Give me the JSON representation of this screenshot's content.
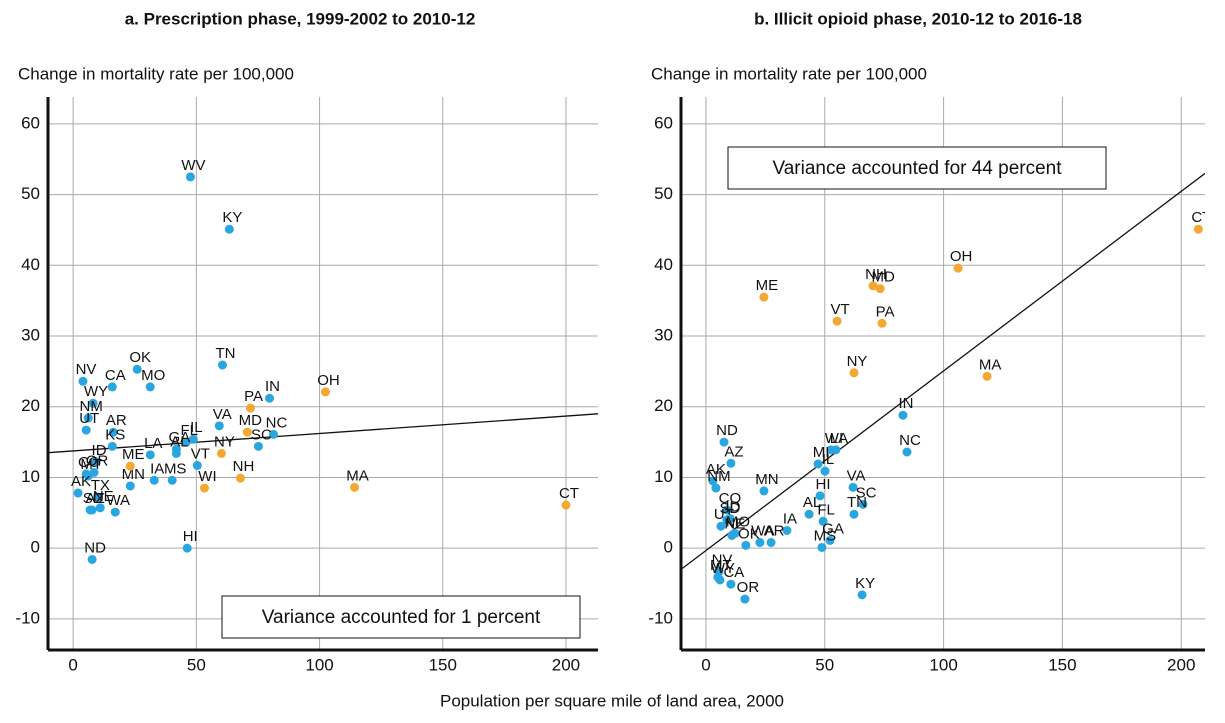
{
  "chart_data": [
    {
      "type": "scatter",
      "title": "a. Prescription phase, 1999-2002 to 2010-12",
      "ylabel": "Change in  mortality rate per 100,000",
      "annotation": "Variance accounted for 1 percent",
      "xlim": [
        -10.2,
        213
      ],
      "ylim": [
        -14.4,
        63.8
      ],
      "xticks": [
        0,
        50,
        100,
        150,
        200
      ],
      "yticks": [
        -10,
        0,
        10,
        20,
        30,
        40,
        50,
        60
      ],
      "grid": true,
      "trend": {
        "x": [
          -10.2,
          213
        ],
        "y": [
          13.5,
          19.0
        ]
      },
      "series": [
        {
          "color": "#29a6df",
          "labels": [
            "WV",
            "KY",
            "TN",
            "OK",
            "NV",
            "CA",
            "MO",
            "WY",
            "IN",
            "NM",
            "UT",
            "VA",
            "NC",
            "IL",
            "FL",
            "AR",
            "KS",
            "GA",
            "SC",
            "AL",
            "LA",
            "CO",
            "ID",
            "OR",
            "MT",
            "VT",
            "IA",
            "MN",
            "TX",
            "AK",
            "AZ",
            "NE",
            "WA",
            "MS",
            "SD",
            "HI",
            "ND"
          ],
          "x": [
            47.6,
            63.4,
            60.6,
            26,
            4,
            15.9,
            31.3,
            8.1,
            79.7,
            6.1,
            5.3,
            59.3,
            81.3,
            48.8,
            45.9,
            16.3,
            15.9,
            41.9,
            75.2,
            41.9,
            31.3,
            5.3,
            9.3,
            8.5,
            6.1,
            50.4,
            32.9,
            23.2,
            9.8,
            2,
            7.7,
            11,
            17.1,
            40.2,
            6.9,
            46.3,
            7.7
          ],
          "y": [
            52.5,
            45.1,
            25.9,
            25.3,
            23.6,
            22.8,
            22.8,
            20.5,
            21.2,
            18.4,
            16.7,
            17.3,
            16.1,
            15.4,
            15,
            16.4,
            14.4,
            14,
            14.4,
            13.4,
            13.2,
            10.5,
            12.2,
            10.7,
            10.2,
            11.7,
            9.6,
            8.8,
            7.2,
            7.8,
            5.4,
            5.7,
            5.1,
            9.6,
            5.4,
            0,
            -1.6
          ]
        },
        {
          "color": "#f5a733",
          "labels": [
            "PA",
            "OH",
            "MD",
            "ME",
            "NY",
            "MA",
            "NH",
            "WI",
            "CT"
          ],
          "x": [
            72,
            102.4,
            70.7,
            23.2,
            60.2,
            114.2,
            67.9,
            53.3,
            200
          ],
          "y": [
            19.8,
            22.1,
            16.4,
            11.6,
            13.4,
            8.6,
            9.9,
            8.5,
            6.1
          ]
        }
      ]
    },
    {
      "type": "scatter",
      "title": "b. Illicit opioid phase, 2010-12 to 2016-18",
      "ylabel": "Change in  mortality rate per 100,000",
      "annotation": "Variance accounted for 44 percent",
      "xlim": [
        -10.5,
        210
      ],
      "ylim": [
        -14.4,
        63.8
      ],
      "xticks": [
        0,
        50,
        100,
        150,
        200
      ],
      "yticks": [
        -10,
        0,
        10,
        20,
        30,
        40,
        50,
        60
      ],
      "grid": true,
      "trend": {
        "x": [
          -10.5,
          210
        ],
        "y": [
          -3,
          53
        ]
      },
      "series": [
        {
          "color": "#29a6df",
          "labels": [
            "IN",
            "NC",
            "ND",
            "AZ",
            "WI",
            "LA",
            "IL",
            "MI",
            "AK",
            "NM",
            "MN",
            "HI",
            "VA",
            "SC",
            "AL",
            "CO",
            "IA",
            "FL",
            "TN",
            "SD",
            "UT",
            "ID",
            "MO",
            "NE",
            "GA",
            "OK",
            "WA",
            "AR",
            "MS",
            "NV",
            "MT",
            "WY",
            "CA",
            "OR",
            "KY"
          ],
          "x": [
            82.9,
            84.6,
            7.6,
            10.5,
            52.6,
            54.7,
            50.1,
            47.2,
            2.9,
            4.2,
            24.4,
            48,
            61.9,
            66.1,
            43.4,
            8.8,
            34.1,
            49.3,
            62.3,
            8.8,
            6.3,
            10.1,
            12.2,
            10.9,
            52.2,
            16.8,
            22.7,
            27.4,
            48.8,
            5.5,
            5,
            5.9,
            10.5,
            16.4,
            65.7
          ],
          "y": [
            18.8,
            13.6,
            15,
            12,
            13.9,
            13.9,
            10.9,
            11.9,
            9.5,
            8.5,
            8.1,
            7.4,
            8.6,
            6.2,
            4.8,
            5.4,
            2.5,
            3.8,
            4.8,
            4,
            3.1,
            4.2,
            2.1,
            1.8,
            1.1,
            0.4,
            0.8,
            0.8,
            0.1,
            -3.3,
            -4.1,
            -4.5,
            -5.1,
            -7.2,
            -6.6
          ]
        },
        {
          "color": "#f5a733",
          "labels": [
            "CT",
            "OH",
            "NH",
            "MD",
            "ME",
            "VT",
            "PA",
            "NY",
            "MA"
          ],
          "x": [
            207.2,
            106.1,
            70.3,
            73.3,
            24.4,
            55.2,
            74.1,
            62.3,
            118.3
          ],
          "y": [
            45.1,
            39.6,
            37.1,
            36.7,
            35.5,
            32.1,
            31.8,
            24.8,
            24.3
          ]
        }
      ]
    }
  ],
  "xlabel": "Population per square mile of land area, 2000"
}
